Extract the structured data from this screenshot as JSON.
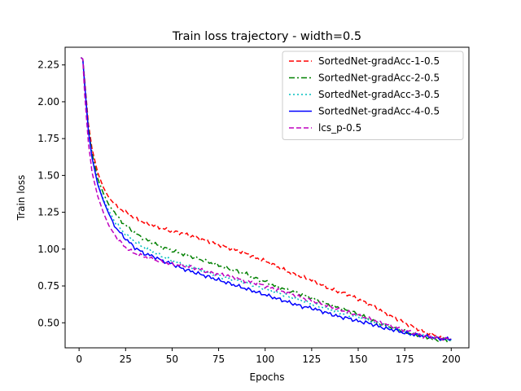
{
  "chart_data": {
    "type": "line",
    "title": "Train loss trajectory - width=0.5",
    "xlabel": "Epochs",
    "ylabel": "Train loss",
    "xlim": [
      -7.5,
      209.5
    ],
    "ylim": [
      0.33,
      2.37
    ],
    "xticks": [
      0,
      25,
      50,
      75,
      100,
      125,
      150,
      175,
      200
    ],
    "yticks": [
      0.5,
      0.75,
      1.0,
      1.25,
      1.5,
      1.75,
      2.0,
      2.25
    ],
    "ytick_labels": [
      "0.50",
      "0.75",
      "1.00",
      "1.25",
      "1.50",
      "1.75",
      "2.00",
      "2.25"
    ],
    "grid": false,
    "legend_position": "upper right",
    "series": [
      {
        "name": "SortedNet-gradAcc-1-0.5",
        "color": "#ff0000",
        "dash": "dashed",
        "x": [
          1,
          2,
          3,
          5,
          7,
          10,
          13,
          16,
          20,
          25,
          30,
          35,
          40,
          45,
          50,
          55,
          60,
          65,
          70,
          75,
          80,
          85,
          90,
          95,
          100,
          105,
          110,
          115,
          120,
          125,
          130,
          135,
          140,
          145,
          150,
          155,
          160,
          165,
          170,
          175,
          180,
          185,
          190,
          195,
          200
        ],
        "y": [
          2.3,
          2.29,
          2.15,
          1.85,
          1.68,
          1.52,
          1.42,
          1.35,
          1.29,
          1.25,
          1.21,
          1.18,
          1.16,
          1.14,
          1.12,
          1.11,
          1.09,
          1.07,
          1.05,
          1.03,
          1.01,
          0.99,
          0.97,
          0.94,
          0.92,
          0.89,
          0.86,
          0.83,
          0.81,
          0.79,
          0.76,
          0.73,
          0.71,
          0.69,
          0.66,
          0.63,
          0.6,
          0.56,
          0.53,
          0.5,
          0.47,
          0.44,
          0.42,
          0.4,
          0.39
        ]
      },
      {
        "name": "SortedNet-gradAcc-2-0.5",
        "color": "#008000",
        "dash": "dashdot",
        "x": [
          1,
          2,
          3,
          5,
          7,
          10,
          13,
          16,
          20,
          25,
          30,
          35,
          40,
          45,
          50,
          55,
          60,
          65,
          70,
          75,
          80,
          85,
          90,
          95,
          100,
          105,
          110,
          115,
          120,
          125,
          130,
          135,
          140,
          145,
          150,
          155,
          160,
          165,
          170,
          175,
          180,
          185,
          190,
          195,
          200
        ],
        "y": [
          2.3,
          2.29,
          2.12,
          1.82,
          1.65,
          1.48,
          1.38,
          1.3,
          1.23,
          1.16,
          1.11,
          1.07,
          1.04,
          1.01,
          0.99,
          0.97,
          0.95,
          0.93,
          0.91,
          0.89,
          0.87,
          0.85,
          0.83,
          0.8,
          0.78,
          0.75,
          0.73,
          0.71,
          0.69,
          0.67,
          0.64,
          0.62,
          0.6,
          0.58,
          0.56,
          0.53,
          0.5,
          0.48,
          0.46,
          0.44,
          0.42,
          0.41,
          0.39,
          0.38,
          0.38
        ]
      },
      {
        "name": "SortedNet-gradAcc-3-0.5",
        "color": "#00bfbf",
        "dash": "dotted",
        "x": [
          1,
          2,
          3,
          5,
          7,
          10,
          13,
          16,
          20,
          25,
          30,
          35,
          40,
          45,
          50,
          55,
          60,
          65,
          70,
          75,
          80,
          85,
          90,
          95,
          100,
          105,
          110,
          115,
          120,
          125,
          130,
          135,
          140,
          145,
          150,
          155,
          160,
          165,
          170,
          175,
          180,
          185,
          190,
          195,
          200
        ],
        "y": [
          2.3,
          2.29,
          2.12,
          1.8,
          1.62,
          1.45,
          1.34,
          1.26,
          1.17,
          1.1,
          1.05,
          1.01,
          0.98,
          0.95,
          0.92,
          0.9,
          0.88,
          0.86,
          0.84,
          0.82,
          0.8,
          0.79,
          0.77,
          0.75,
          0.73,
          0.71,
          0.69,
          0.67,
          0.65,
          0.63,
          0.61,
          0.59,
          0.57,
          0.55,
          0.54,
          0.52,
          0.5,
          0.48,
          0.46,
          0.44,
          0.42,
          0.41,
          0.4,
          0.39,
          0.38
        ]
      },
      {
        "name": "SortedNet-gradAcc-4-0.5",
        "color": "#0000ff",
        "dash": "solid",
        "x": [
          1,
          2,
          3,
          5,
          7,
          10,
          13,
          16,
          20,
          25,
          30,
          35,
          40,
          45,
          50,
          55,
          60,
          65,
          70,
          75,
          80,
          85,
          90,
          95,
          100,
          105,
          110,
          115,
          120,
          125,
          130,
          135,
          140,
          145,
          150,
          155,
          160,
          165,
          170,
          175,
          180,
          185,
          190,
          195,
          200
        ],
        "y": [
          2.3,
          2.29,
          2.12,
          1.8,
          1.62,
          1.44,
          1.33,
          1.24,
          1.14,
          1.07,
          1.01,
          0.97,
          0.95,
          0.92,
          0.9,
          0.87,
          0.85,
          0.83,
          0.81,
          0.79,
          0.77,
          0.75,
          0.73,
          0.71,
          0.69,
          0.67,
          0.65,
          0.63,
          0.61,
          0.6,
          0.58,
          0.56,
          0.54,
          0.53,
          0.51,
          0.5,
          0.48,
          0.46,
          0.45,
          0.43,
          0.42,
          0.41,
          0.4,
          0.39,
          0.39
        ]
      },
      {
        "name": "lcs_p-0.5",
        "color": "#bf00bf",
        "dash": "dashed",
        "x": [
          1,
          2,
          3,
          5,
          7,
          10,
          13,
          16,
          20,
          25,
          30,
          35,
          40,
          45,
          50,
          55,
          60,
          65,
          70,
          75,
          80,
          85,
          90,
          95,
          100,
          105,
          110,
          115,
          120,
          125,
          130,
          135,
          140,
          145,
          150,
          155,
          160,
          165,
          170,
          175,
          180,
          185,
          190,
          195,
          200
        ],
        "y": [
          2.3,
          2.29,
          2.05,
          1.72,
          1.52,
          1.36,
          1.25,
          1.16,
          1.08,
          1.01,
          0.97,
          0.95,
          0.93,
          0.91,
          0.9,
          0.89,
          0.88,
          0.86,
          0.84,
          0.83,
          0.82,
          0.8,
          0.78,
          0.77,
          0.75,
          0.73,
          0.71,
          0.69,
          0.67,
          0.65,
          0.63,
          0.61,
          0.59,
          0.57,
          0.55,
          0.53,
          0.51,
          0.49,
          0.47,
          0.45,
          0.43,
          0.41,
          0.4,
          0.39,
          0.39
        ]
      }
    ]
  }
}
